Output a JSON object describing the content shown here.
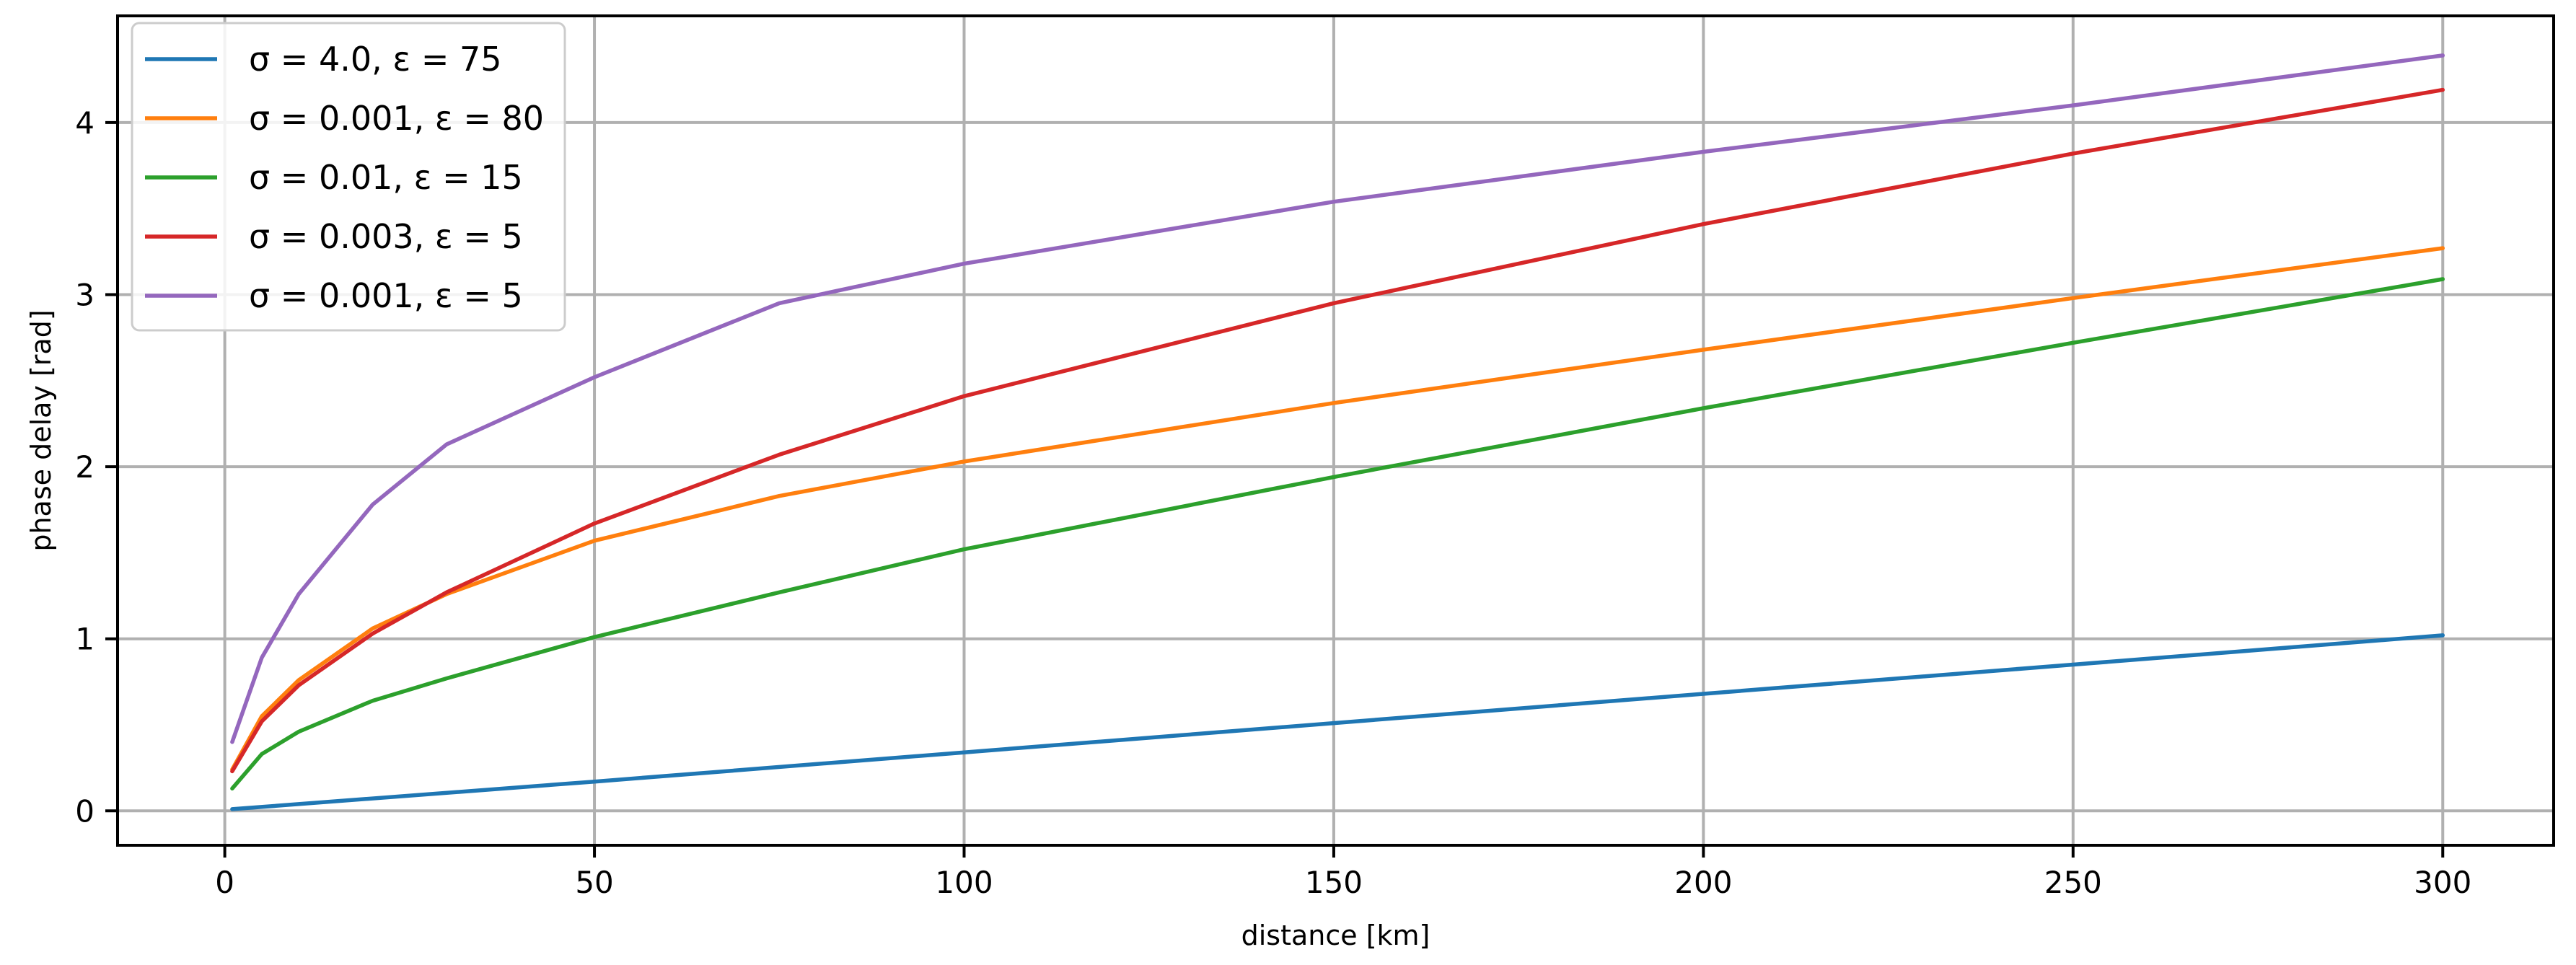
{
  "chart_data": {
    "type": "line",
    "xlabel": "distance [km]",
    "ylabel": "phase delay [rad]",
    "xlim": [
      -14.5,
      315
    ],
    "ylim": [
      -0.2,
      4.62
    ],
    "xticks": [
      0,
      50,
      100,
      150,
      200,
      250,
      300
    ],
    "yticks": [
      0,
      1,
      2,
      3,
      4
    ],
    "grid": true,
    "legend_position": "top-left",
    "series": [
      {
        "name": "σ = 4.0, ε = 75",
        "color": "#1f77b4",
        "x": [
          1,
          50,
          100,
          150,
          200,
          250,
          300
        ],
        "y": [
          0.01,
          0.17,
          0.34,
          0.51,
          0.68,
          0.85,
          1.02
        ]
      },
      {
        "name": "σ = 0.001, ε = 80",
        "color": "#ff7f0e",
        "x": [
          1,
          5,
          10,
          20,
          30,
          50,
          75,
          100,
          150,
          200,
          250,
          300
        ],
        "y": [
          0.24,
          0.55,
          0.76,
          1.06,
          1.26,
          1.57,
          1.83,
          2.03,
          2.37,
          2.68,
          2.98,
          3.27
        ]
      },
      {
        "name": "σ = 0.01, ε = 15",
        "color": "#2ca02c",
        "x": [
          1,
          5,
          10,
          20,
          30,
          50,
          75,
          100,
          150,
          200,
          250,
          300
        ],
        "y": [
          0.13,
          0.33,
          0.46,
          0.64,
          0.77,
          1.01,
          1.27,
          1.52,
          1.94,
          2.34,
          2.72,
          3.09
        ]
      },
      {
        "name": "σ = 0.003, ε = 5",
        "color": "#d62728",
        "x": [
          1,
          5,
          10,
          20,
          30,
          50,
          75,
          100,
          150,
          200,
          250,
          300
        ],
        "y": [
          0.23,
          0.52,
          0.73,
          1.03,
          1.27,
          1.67,
          2.07,
          2.41,
          2.95,
          3.41,
          3.82,
          4.19
        ]
      },
      {
        "name": "σ = 0.001, ε = 5",
        "color": "#9467bd",
        "x": [
          1,
          5,
          10,
          20,
          30,
          50,
          75,
          100,
          150,
          200,
          250,
          300
        ],
        "y": [
          0.4,
          0.89,
          1.26,
          1.78,
          2.13,
          2.52,
          2.95,
          3.18,
          3.54,
          3.83,
          4.1,
          4.39
        ]
      }
    ]
  }
}
